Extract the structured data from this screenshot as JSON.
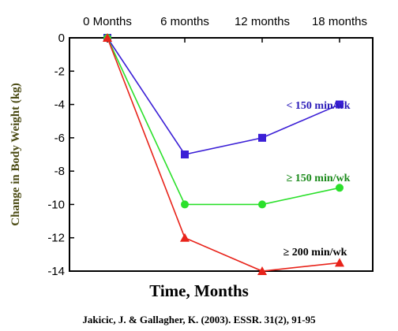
{
  "chart_data": {
    "type": "line",
    "categories": [
      "0 Months",
      "6 months",
      "12 months",
      "18 months"
    ],
    "ylabel": "Change in Body Weight (kg)",
    "xlabel": "Time, Months",
    "ylim": [
      -14,
      0
    ],
    "yticks": [
      0,
      -2,
      -4,
      -6,
      -8,
      -10,
      -12,
      -14
    ],
    "grid": false,
    "series": [
      {
        "name": "< 150 min/wk",
        "values": [
          0,
          -7,
          -6,
          -4
        ],
        "color": "#3b1fd6",
        "marker": "square"
      },
      {
        "name": "≥ 150 min/wk",
        "values": [
          0,
          -10,
          -10,
          -9
        ],
        "color": "#2be02b",
        "marker": "circle"
      },
      {
        "name": "≥ 200 min/wk",
        "values": [
          0,
          -12,
          -14,
          -13.5
        ],
        "color": "#e8231a",
        "marker": "triangle"
      }
    ],
    "label_colors": [
      "#2a1ab8",
      "#1a8a1a",
      "#000000"
    ]
  },
  "citation": "Jakicic, J. & Gallagher, K. (2003). ESSR. 31(2), 91-95"
}
